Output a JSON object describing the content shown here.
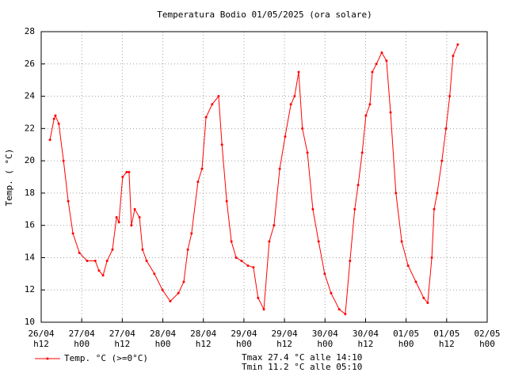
{
  "chart_data": {
    "type": "line",
    "title": "Temperatura Bodio 01/05/2025 (ora solare)",
    "y_label": "Temp. ( °C)",
    "x": [
      14.6,
      15.8,
      16.2,
      17.2,
      18.6,
      20,
      21.4,
      23.3,
      25.6,
      28,
      29.1,
      30.3,
      31.5,
      33.1,
      34.3,
      35,
      36.1,
      37.3,
      38,
      38.7,
      39.7,
      41.1,
      42,
      43.2,
      45.5,
      47.9,
      50.2,
      52.6,
      54.2,
      55.4,
      56.5,
      58.4,
      59.6,
      60.8,
      62.6,
      64.5,
      65.5,
      66.9,
      68.3,
      69.7,
      71.3,
      73.2,
      74.8,
      76.2,
      77.9,
      79.5,
      80.9,
      82.6,
      84.2,
      85.9,
      87,
      88.2,
      89.3,
      90.8,
      92.4,
      94.1,
      95.9,
      97.8,
      100.2,
      102,
      103.4,
      104.8,
      105.8,
      107,
      108.1,
      109.3,
      110,
      111.2,
      112.8,
      114.2,
      115.4,
      117,
      118.7,
      120.6,
      122.9,
      125.2,
      126.4,
      127.6,
      128.3,
      129.2,
      130.6,
      131.8,
      132.9,
      133.9,
      135.3
    ],
    "series": [
      {
        "name": "Temp. °C (>=0°C)",
        "color": "#ff0000",
        "values": [
          21.3,
          22.6,
          22.8,
          22.3,
          20,
          17.5,
          15.5,
          14.3,
          13.8,
          13.8,
          13.2,
          12.9,
          13.8,
          14.5,
          16.5,
          16.2,
          19,
          19.3,
          19.3,
          16,
          17,
          16.5,
          14.5,
          13.8,
          13,
          12,
          11.3,
          11.8,
          12.5,
          14.5,
          15.5,
          18.7,
          19.5,
          22.7,
          23.5,
          24,
          21,
          17.5,
          15,
          14,
          13.8,
          13.5,
          13.4,
          11.5,
          10.8,
          15,
          16,
          19.5,
          21.5,
          23.5,
          24,
          25.5,
          22,
          20.5,
          17,
          15,
          13,
          11.8,
          10.8,
          10.5,
          13.8,
          17,
          18.5,
          20.5,
          22.8,
          23.5,
          25.5,
          26,
          26.7,
          26.2,
          23,
          18,
          15,
          13.5,
          12.5,
          11.5,
          11.2,
          14,
          17,
          18,
          20,
          22,
          24,
          26.5,
          27.2
        ]
      }
    ],
    "xlim": [
      12,
      144
    ],
    "xticks": [
      {
        "value": 12,
        "label": [
          "26/04",
          "h12"
        ]
      },
      {
        "value": 24,
        "label": [
          "27/04",
          "h00"
        ]
      },
      {
        "value": 36,
        "label": [
          "27/04",
          "h12"
        ]
      },
      {
        "value": 48,
        "label": [
          "28/04",
          "h00"
        ]
      },
      {
        "value": 60,
        "label": [
          "28/04",
          "h12"
        ]
      },
      {
        "value": 72,
        "label": [
          "29/04",
          "h00"
        ]
      },
      {
        "value": 84,
        "label": [
          "29/04",
          "h12"
        ]
      },
      {
        "value": 96,
        "label": [
          "30/04",
          "h00"
        ]
      },
      {
        "value": 108,
        "label": [
          "30/04",
          "h12"
        ]
      },
      {
        "value": 120,
        "label": [
          "01/05",
          "h00"
        ]
      },
      {
        "value": 132,
        "label": [
          "01/05",
          "h12"
        ]
      },
      {
        "value": 144,
        "label": [
          "02/05",
          "h00"
        ]
      }
    ],
    "ylim": [
      10,
      28
    ],
    "yticks": [
      10,
      12,
      14,
      16,
      18,
      20,
      22,
      24,
      26,
      28
    ],
    "grid": true,
    "annotations": [
      "Tmax 27.4 °C alle 14:10",
      "Tmin 11.2 °C alle 05:10"
    ]
  }
}
